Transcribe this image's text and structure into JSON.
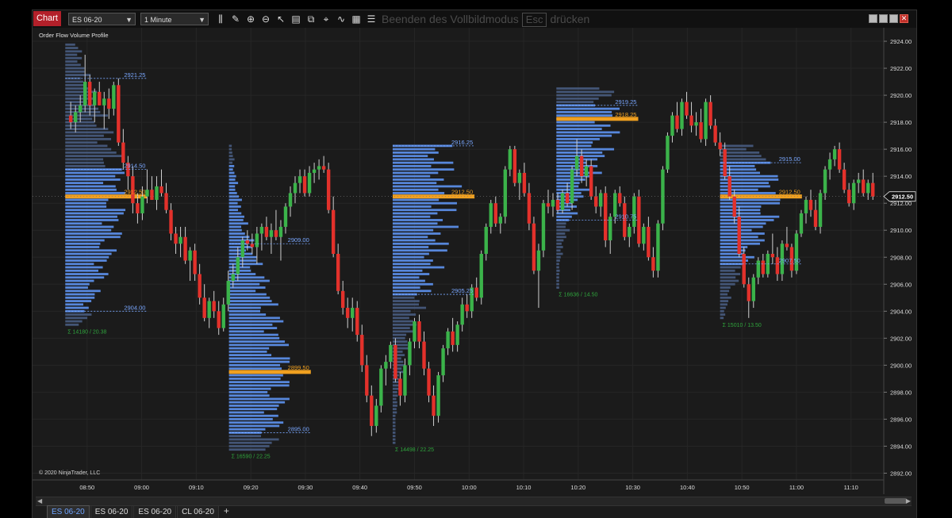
{
  "toolbar": {
    "chart_tab": "Chart",
    "instrument": "ES 06-20",
    "interval": "1 Minute",
    "fullscreen_pre": "Beenden des Vollbildmodus",
    "fullscreen_key": "Esc",
    "fullscreen_post": "drücken"
  },
  "indicator_label": "Order Flow Volume Profile",
  "copyright": "© 2020 NinjaTrader, LLC",
  "instrument_tabs": [
    "ES 06-20",
    "ES 06-20",
    "ES 06-20",
    "CL 06-20"
  ],
  "add_tab": "+",
  "colors": {
    "up": "#3bb34a",
    "down": "#e3312b",
    "profile": "#5b8de6",
    "poc": "#f0a020",
    "bg": "#1b1b1b"
  },
  "chart_data": {
    "type": "candlestick",
    "ylim": [
      2891.5,
      2925
    ],
    "y_ticks": [
      "2924.00",
      "2922.00",
      "2920.00",
      "2918.00",
      "2916.00",
      "2914.00",
      "2912.00",
      "2910.00",
      "2908.00",
      "2906.00",
      "2904.00",
      "2902.00",
      "2900.00",
      "2898.00",
      "2896.00",
      "2894.00",
      "2892.00"
    ],
    "x_ticks": [
      "08:50",
      "09:00",
      "09:10",
      "09:20",
      "09:30",
      "09:40",
      "09:50",
      "10:00",
      "10:10",
      "10:20",
      "10:30",
      "10:40",
      "10:50",
      "11:00",
      "11:10"
    ],
    "last_price": "2912.50",
    "sessions": [
      {
        "start": "08:46",
        "end": "09:01",
        "low": 2903.0,
        "high": 2923.75,
        "vah": "2914.50",
        "poc": "2912.50",
        "val": "2904.00",
        "top": "2921.25",
        "stats": "Σ 14180 / 20.38"
      },
      {
        "start": "09:16",
        "end": "09:31",
        "low": 2893.75,
        "high": 2916.25,
        "vah": "",
        "poc": "2899.50",
        "val": "2895.00",
        "top": "2909.00",
        "stats": "Σ 16590 / 22.25"
      },
      {
        "start": "09:46",
        "end": "10:01",
        "low": 2894.25,
        "high": 2916.25,
        "vah": "2916.25",
        "poc": "2912.50",
        "val": "2905.25",
        "top": "",
        "stats": "Σ 14498 / 22.25"
      },
      {
        "start": "10:16",
        "end": "10:31",
        "low": 2905.75,
        "high": 2920.5,
        "vah": "2919.25",
        "poc": "2918.25",
        "val": "2910.75",
        "top": "",
        "stats": "Σ 16636 / 14.50"
      },
      {
        "start": "10:46",
        "end": "11:01",
        "low": 2903.5,
        "high": 2916.25,
        "vah": "2915.00",
        "poc": "2912.50",
        "val": "2907.50",
        "top": "",
        "stats": "Σ 15010 / 13.50"
      }
    ],
    "candles": [
      [
        2918.5,
        2919.5,
        2917.5,
        2918.0
      ],
      [
        2918.0,
        2919.25,
        2917.25,
        2918.75
      ],
      [
        2918.75,
        2920.0,
        2918.0,
        2919.25
      ],
      [
        2919.25,
        2923.0,
        2918.75,
        2921.0
      ],
      [
        2921.0,
        2921.5,
        2918.5,
        2919.25
      ],
      [
        2919.25,
        2920.5,
        2918.0,
        2920.25
      ],
      [
        2920.25,
        2921.0,
        2919.25,
        2919.25
      ],
      [
        2919.25,
        2920.25,
        2917.5,
        2919.75
      ],
      [
        2919.75,
        2920.5,
        2918.25,
        2919.0
      ],
      [
        2919.0,
        2921.0,
        2918.5,
        2920.75
      ],
      [
        2920.75,
        2921.25,
        2916.25,
        2916.5
      ],
      [
        2916.5,
        2917.5,
        2914.5,
        2915.0
      ],
      [
        2915.0,
        2915.5,
        2913.0,
        2914.0
      ],
      [
        2914.0,
        2914.75,
        2911.25,
        2912.0
      ],
      [
        2912.0,
        2912.75,
        2910.5,
        2911.25
      ],
      [
        2911.25,
        2913.25,
        2910.75,
        2912.5
      ],
      [
        2912.5,
        2914.5,
        2912.0,
        2913.0
      ],
      [
        2913.0,
        2914.0,
        2912.25,
        2912.25
      ],
      [
        2912.25,
        2914.0,
        2911.5,
        2913.25
      ],
      [
        2913.25,
        2914.5,
        2912.5,
        2912.75
      ],
      [
        2912.75,
        2913.5,
        2911.25,
        2911.5
      ],
      [
        2911.5,
        2912.0,
        2909.25,
        2909.75
      ],
      [
        2909.75,
        2910.25,
        2908.25,
        2909.0
      ],
      [
        2909.0,
        2910.25,
        2908.0,
        2909.5
      ],
      [
        2909.5,
        2910.25,
        2907.5,
        2907.75
      ],
      [
        2907.75,
        2908.75,
        2906.25,
        2908.5
      ],
      [
        2908.5,
        2909.0,
        2906.25,
        2906.75
      ],
      [
        2906.75,
        2907.5,
        2904.5,
        2905.0
      ],
      [
        2905.0,
        2906.0,
        2903.25,
        2903.5
      ],
      [
        2903.5,
        2905.0,
        2902.75,
        2904.75
      ],
      [
        2904.75,
        2905.5,
        2903.5,
        2904.0
      ],
      [
        2904.0,
        2904.75,
        2902.25,
        2902.75
      ],
      [
        2902.75,
        2905.0,
        2902.5,
        2904.5
      ],
      [
        2904.5,
        2907.0,
        2904.0,
        2906.25
      ],
      [
        2906.25,
        2907.5,
        2905.75,
        2906.75
      ],
      [
        2906.75,
        2908.75,
        2906.25,
        2908.0
      ],
      [
        2908.0,
        2909.5,
        2907.25,
        2909.25
      ],
      [
        2909.25,
        2910.0,
        2908.5,
        2909.0
      ],
      [
        2909.0,
        2909.75,
        2908.25,
        2908.75
      ],
      [
        2908.75,
        2910.25,
        2907.5,
        2909.75
      ],
      [
        2909.75,
        2910.5,
        2908.5,
        2910.25
      ],
      [
        2910.25,
        2911.0,
        2909.25,
        2909.5
      ],
      [
        2909.5,
        2910.5,
        2908.25,
        2910.0
      ],
      [
        2910.0,
        2911.5,
        2909.25,
        2909.5
      ],
      [
        2909.5,
        2910.75,
        2907.75,
        2910.25
      ],
      [
        2910.25,
        2912.0,
        2909.75,
        2911.75
      ],
      [
        2911.75,
        2913.25,
        2911.0,
        2912.75
      ],
      [
        2912.75,
        2914.0,
        2912.0,
        2913.5
      ],
      [
        2913.5,
        2914.5,
        2912.75,
        2914.0
      ],
      [
        2914.0,
        2914.5,
        2912.5,
        2912.75
      ],
      [
        2912.75,
        2914.75,
        2912.5,
        2914.25
      ],
      [
        2914.25,
        2915.0,
        2913.5,
        2914.5
      ],
      [
        2914.5,
        2915.25,
        2913.75,
        2914.75
      ],
      [
        2914.75,
        2915.5,
        2914.25,
        2914.5
      ],
      [
        2914.5,
        2915.0,
        2911.25,
        2911.5
      ],
      [
        2911.5,
        2912.5,
        2908.0,
        2908.25
      ],
      [
        2908.25,
        2909.0,
        2905.25,
        2905.5
      ],
      [
        2905.5,
        2906.25,
        2903.75,
        2904.25
      ],
      [
        2904.25,
        2905.0,
        2902.75,
        2903.5
      ],
      [
        2903.5,
        2905.0,
        2902.5,
        2904.25
      ],
      [
        2904.25,
        2904.75,
        2901.75,
        2902.25
      ],
      [
        2902.25,
        2903.0,
        2899.5,
        2900.0
      ],
      [
        2900.0,
        2900.75,
        2897.25,
        2897.75
      ],
      [
        2897.75,
        2898.5,
        2894.75,
        2895.5
      ],
      [
        2895.5,
        2897.5,
        2895.0,
        2897.0
      ],
      [
        2897.0,
        2900.0,
        2896.5,
        2899.75
      ],
      [
        2899.75,
        2900.75,
        2898.5,
        2900.25
      ],
      [
        2900.25,
        2901.75,
        2899.75,
        2901.5
      ],
      [
        2901.5,
        2902.0,
        2898.75,
        2899.0
      ],
      [
        2899.0,
        2899.5,
        2897.0,
        2897.75
      ],
      [
        2897.75,
        2900.5,
        2897.25,
        2900.0
      ],
      [
        2900.0,
        2902.0,
        2899.25,
        2901.75
      ],
      [
        2901.75,
        2903.5,
        2901.25,
        2903.25
      ],
      [
        2903.25,
        2903.75,
        2901.25,
        2901.75
      ],
      [
        2901.75,
        2902.5,
        2899.25,
        2899.75
      ],
      [
        2899.75,
        2900.25,
        2897.25,
        2897.75
      ],
      [
        2897.75,
        2898.5,
        2895.5,
        2896.25
      ],
      [
        2896.25,
        2899.5,
        2895.75,
        2899.25
      ],
      [
        2899.25,
        2901.5,
        2898.75,
        2901.25
      ],
      [
        2901.25,
        2902.75,
        2900.75,
        2902.5
      ],
      [
        2902.5,
        2903.5,
        2901.0,
        2901.5
      ],
      [
        2901.5,
        2903.25,
        2901.0,
        2903.0
      ],
      [
        2903.0,
        2905.0,
        2902.5,
        2904.5
      ],
      [
        2904.5,
        2905.25,
        2903.5,
        2904.0
      ],
      [
        2904.0,
        2906.0,
        2903.5,
        2905.75
      ],
      [
        2905.75,
        2906.5,
        2904.75,
        2905.0
      ],
      [
        2905.0,
        2908.5,
        2904.5,
        2908.25
      ],
      [
        2908.25,
        2910.5,
        2907.75,
        2910.25
      ],
      [
        2910.25,
        2912.25,
        2909.75,
        2912.0
      ],
      [
        2912.0,
        2912.5,
        2910.25,
        2910.5
      ],
      [
        2910.5,
        2911.25,
        2909.75,
        2911.0
      ],
      [
        2911.0,
        2914.75,
        2910.5,
        2914.5
      ],
      [
        2914.5,
        2916.25,
        2914.0,
        2916.0
      ],
      [
        2916.0,
        2916.25,
        2913.25,
        2913.5
      ],
      [
        2913.5,
        2914.5,
        2912.25,
        2914.25
      ],
      [
        2914.25,
        2915.0,
        2912.5,
        2912.75
      ],
      [
        2912.75,
        2913.5,
        2910.0,
        2910.5
      ],
      [
        2910.5,
        2911.0,
        2906.75,
        2907.0
      ],
      [
        2907.0,
        2909.0,
        2904.25,
        2908.5
      ],
      [
        2908.5,
        2912.25,
        2908.0,
        2912.0
      ],
      [
        2912.0,
        2913.0,
        2911.25,
        2911.75
      ],
      [
        2911.75,
        2912.75,
        2911.0,
        2912.25
      ],
      [
        2912.25,
        2912.75,
        2911.25,
        2911.5
      ],
      [
        2911.5,
        2913.0,
        2911.25,
        2912.75
      ],
      [
        2912.75,
        2913.5,
        2911.75,
        2912.0
      ],
      [
        2912.0,
        2914.75,
        2911.5,
        2914.5
      ],
      [
        2914.5,
        2916.75,
        2914.0,
        2915.5
      ],
      [
        2915.5,
        2916.0,
        2913.5,
        2914.0
      ],
      [
        2914.0,
        2915.25,
        2913.25,
        2914.75
      ],
      [
        2914.75,
        2915.25,
        2912.25,
        2912.5
      ],
      [
        2912.5,
        2913.25,
        2911.25,
        2911.75
      ],
      [
        2911.75,
        2913.0,
        2911.0,
        2912.75
      ],
      [
        2912.75,
        2913.25,
        2908.75,
        2909.25
      ],
      [
        2909.25,
        2911.25,
        2908.25,
        2911.0
      ],
      [
        2911.0,
        2913.0,
        2910.5,
        2912.75
      ],
      [
        2912.75,
        2913.25,
        2911.75,
        2912.0
      ],
      [
        2912.0,
        2912.5,
        2909.25,
        2909.5
      ],
      [
        2909.5,
        2910.5,
        2908.75,
        2910.25
      ],
      [
        2910.25,
        2912.75,
        2909.75,
        2912.5
      ],
      [
        2912.5,
        2913.0,
        2908.75,
        2909.0
      ],
      [
        2909.0,
        2910.5,
        2908.5,
        2910.25
      ],
      [
        2910.25,
        2911.0,
        2907.75,
        2908.0
      ],
      [
        2908.0,
        2908.75,
        2906.5,
        2907.0
      ],
      [
        2907.0,
        2910.75,
        2906.5,
        2910.5
      ],
      [
        2910.5,
        2914.75,
        2910.0,
        2914.5
      ],
      [
        2914.5,
        2917.25,
        2914.25,
        2917.0
      ],
      [
        2917.0,
        2918.75,
        2916.5,
        2918.5
      ],
      [
        2918.5,
        2919.5,
        2917.25,
        2917.5
      ],
      [
        2917.5,
        2919.75,
        2917.0,
        2919.5
      ],
      [
        2919.5,
        2920.25,
        2918.25,
        2918.5
      ],
      [
        2918.5,
        2919.5,
        2917.25,
        2917.75
      ],
      [
        2917.75,
        2918.75,
        2917.0,
        2918.0
      ],
      [
        2918.0,
        2919.0,
        2916.5,
        2916.75
      ],
      [
        2916.75,
        2919.75,
        2916.25,
        2919.5
      ],
      [
        2919.5,
        2920.0,
        2917.5,
        2917.75
      ],
      [
        2917.75,
        2918.25,
        2916.25,
        2916.5
      ],
      [
        2916.5,
        2917.25,
        2915.5,
        2916.0
      ],
      [
        2916.0,
        2916.5,
        2913.75,
        2914.0
      ],
      [
        2914.0,
        2914.75,
        2912.25,
        2912.5
      ],
      [
        2912.5,
        2913.0,
        2910.5,
        2911.0
      ],
      [
        2911.0,
        2911.75,
        2908.0,
        2908.25
      ],
      [
        2908.25,
        2908.75,
        2905.75,
        2906.0
      ],
      [
        2906.0,
        2906.5,
        2903.5,
        2904.75
      ],
      [
        2904.75,
        2906.75,
        2904.25,
        2906.5
      ],
      [
        2906.5,
        2908.0,
        2906.0,
        2907.75
      ],
      [
        2907.75,
        2908.25,
        2906.5,
        2906.75
      ],
      [
        2906.75,
        2908.5,
        2906.5,
        2908.25
      ],
      [
        2908.25,
        2909.75,
        2907.5,
        2908.0
      ],
      [
        2908.0,
        2908.75,
        2906.25,
        2906.75
      ],
      [
        2906.75,
        2909.25,
        2906.25,
        2909.0
      ],
      [
        2909.0,
        2910.25,
        2908.5,
        2908.75
      ],
      [
        2908.75,
        2909.0,
        2906.5,
        2907.0
      ],
      [
        2907.0,
        2910.0,
        2906.75,
        2909.75
      ],
      [
        2909.75,
        2911.5,
        2909.5,
        2911.25
      ],
      [
        2911.25,
        2912.5,
        2910.5,
        2912.25
      ],
      [
        2912.25,
        2913.0,
        2911.0,
        2911.5
      ],
      [
        2911.5,
        2912.25,
        2910.0,
        2910.25
      ],
      [
        2910.25,
        2913.0,
        2909.75,
        2912.75
      ],
      [
        2912.75,
        2914.75,
        2912.25,
        2914.5
      ],
      [
        2914.5,
        2915.75,
        2913.75,
        2915.25
      ],
      [
        2915.25,
        2916.25,
        2914.75,
        2916.0
      ],
      [
        2916.0,
        2916.5,
        2914.25,
        2914.5
      ],
      [
        2914.5,
        2915.0,
        2912.75,
        2913.0
      ],
      [
        2913.0,
        2913.5,
        2911.75,
        2912.0
      ],
      [
        2912.0,
        2913.75,
        2911.5,
        2913.5
      ],
      [
        2913.5,
        2914.25,
        2912.75,
        2913.75
      ],
      [
        2913.75,
        2914.5,
        2912.5,
        2912.75
      ],
      [
        2912.75,
        2913.75,
        2912.25,
        2913.5
      ],
      [
        2913.5,
        2914.25,
        2912.25,
        2912.5
      ]
    ]
  }
}
